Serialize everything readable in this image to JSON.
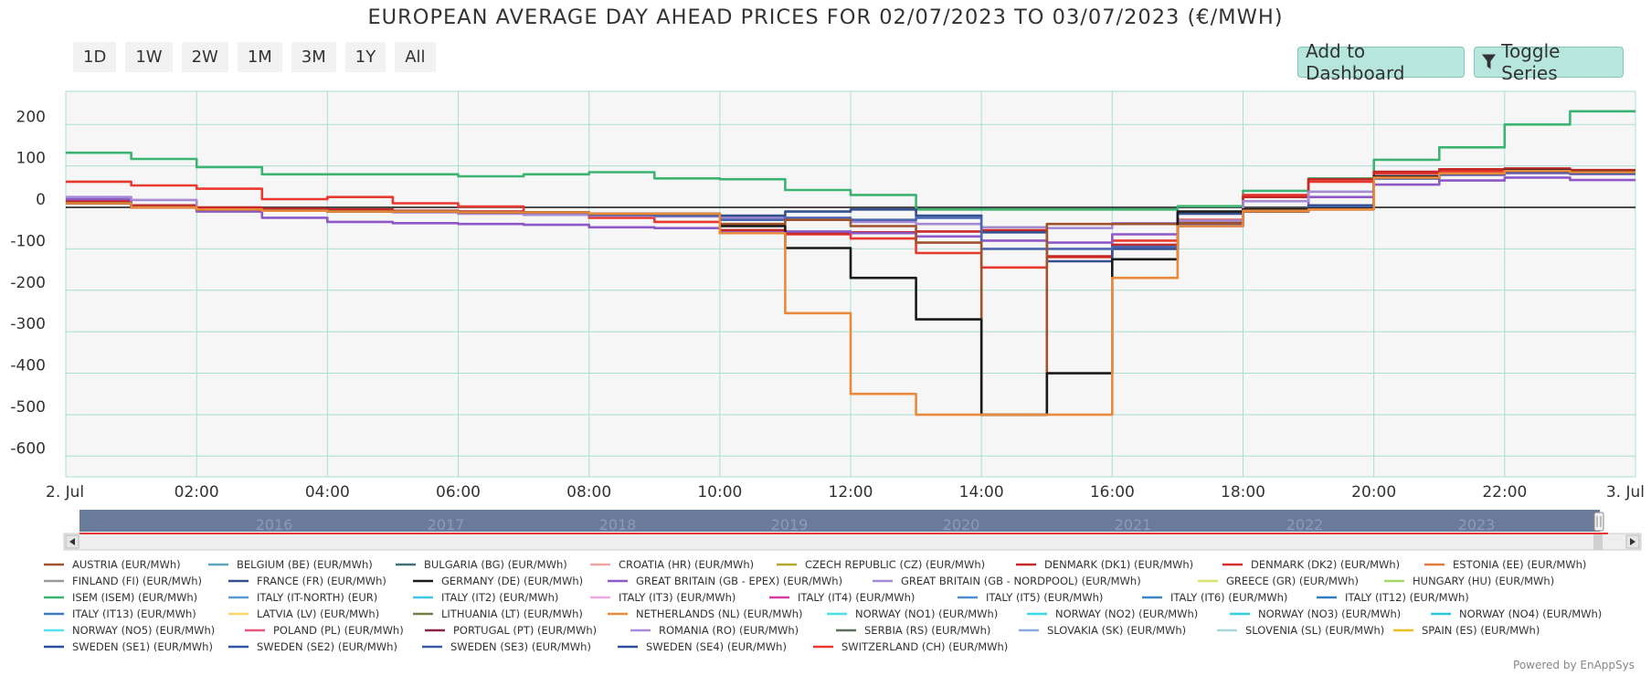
{
  "title": "EUROPEAN AVERAGE DAY AHEAD PRICES FOR 02/07/2023 TO 03/07/2023 (€/MWH)",
  "range_buttons": [
    "1D",
    "1W",
    "2W",
    "1M",
    "3M",
    "1Y",
    "All"
  ],
  "actions": {
    "add_to_dashboard": "Add to Dashboard",
    "toggle_series": "Toggle Series"
  },
  "footer": "Powered by EnAppSys",
  "colors": {
    "grid": "#aaddd3",
    "plot_bg": "#f6f6f6",
    "navigator": "#6a7a9b",
    "accent_button": "#b7e6dd"
  },
  "chart_data": {
    "type": "line",
    "step": true,
    "ylim": [
      -650,
      280
    ],
    "y_ticks": [
      200,
      100,
      0,
      -100,
      -200,
      -300,
      -400,
      -500,
      -600
    ],
    "x_range_hours": [
      0,
      24
    ],
    "x_ticks": [
      {
        "h": 0,
        "label": "2. Jul"
      },
      {
        "h": 2,
        "label": "02:00"
      },
      {
        "h": 4,
        "label": "04:00"
      },
      {
        "h": 6,
        "label": "06:00"
      },
      {
        "h": 8,
        "label": "08:00"
      },
      {
        "h": 10,
        "label": "10:00"
      },
      {
        "h": 12,
        "label": "12:00"
      },
      {
        "h": 14,
        "label": "14:00"
      },
      {
        "h": 16,
        "label": "16:00"
      },
      {
        "h": 18,
        "label": "18:00"
      },
      {
        "h": 20,
        "label": "20:00"
      },
      {
        "h": 22,
        "label": "22:00"
      },
      {
        "h": 24,
        "label": "3. Jul"
      }
    ],
    "navigator_years": [
      "2016",
      "2017",
      "2018",
      "2019",
      "2020",
      "2021",
      "2022",
      "2023"
    ],
    "series": [
      {
        "name": "ISEM (ISEM) (EUR/MWh)",
        "color": "#3cb371",
        "values": [
          132,
          132,
          117,
          117,
          97,
          97,
          80,
          80,
          80,
          80,
          80,
          80,
          75,
          75,
          80,
          80,
          85,
          85,
          70,
          70,
          68,
          68,
          42,
          42,
          30,
          30,
          -5,
          -5,
          -5,
          -5,
          -5,
          -5,
          -5,
          -5,
          3,
          3,
          40,
          40,
          70,
          70,
          115,
          115,
          145,
          145,
          200,
          200,
          232,
          232
        ]
      },
      {
        "name": "SWITZERLAND (CH) (EUR/MWh)",
        "color": "#e8392f",
        "values": [
          62,
          62,
          53,
          53,
          45,
          45,
          20,
          20,
          25,
          25,
          10,
          10,
          2,
          2,
          -15,
          -15,
          -25,
          -25,
          -35,
          -35,
          -55,
          -55,
          -65,
          -65,
          -75,
          -75,
          -110,
          -110,
          -145,
          -145,
          -120,
          -120,
          -80,
          -80,
          -30,
          -30,
          30,
          30,
          62,
          62,
          82,
          82,
          87,
          87,
          90,
          90,
          88,
          88
        ]
      },
      {
        "name": "DENMARK (DK1) (EUR/MWh)",
        "color": "#c62828",
        "values": [
          15,
          15,
          5,
          5,
          0,
          0,
          -3,
          -3,
          -5,
          -5,
          -8,
          -8,
          -10,
          -10,
          -12,
          -12,
          -15,
          -15,
          -20,
          -20,
          -55,
          -55,
          -62,
          -62,
          -60,
          -60,
          -58,
          -58,
          -55,
          -55,
          -118,
          -118,
          -90,
          -90,
          -35,
          -35,
          25,
          25,
          68,
          68,
          86,
          86,
          92,
          92,
          94,
          94,
          90,
          90
        ]
      },
      {
        "name": "GREAT BRITAIN (GB - EPEX) (EUR/MWh)",
        "color": "#8e58c7",
        "values": [
          20,
          20,
          0,
          0,
          -10,
          -10,
          -25,
          -25,
          -35,
          -35,
          -38,
          -38,
          -40,
          -40,
          -42,
          -42,
          -48,
          -48,
          -50,
          -50,
          -60,
          -60,
          -58,
          -58,
          -62,
          -62,
          -70,
          -70,
          -80,
          -80,
          -85,
          -85,
          -65,
          -65,
          -45,
          -45,
          -5,
          -5,
          25,
          25,
          55,
          55,
          65,
          65,
          72,
          72,
          66,
          66
        ]
      },
      {
        "name": "GREAT BRITAIN (GB - NORDPOOL) (EUR/MWh)",
        "color": "#a58ad4",
        "values": [
          25,
          25,
          18,
          18,
          -5,
          -5,
          -8,
          -8,
          -10,
          -10,
          -12,
          -12,
          -15,
          -15,
          -18,
          -18,
          -20,
          -20,
          -22,
          -22,
          -25,
          -25,
          -28,
          -28,
          -35,
          -35,
          -40,
          -40,
          -48,
          -48,
          -50,
          -50,
          -38,
          -38,
          -32,
          -32,
          15,
          15,
          38,
          38,
          70,
          70,
          78,
          78,
          82,
          82,
          80,
          80
        ]
      },
      {
        "name": "FRANCE (FR) (EUR/MWh)",
        "color": "#34508f",
        "values": [
          10,
          10,
          0,
          0,
          -5,
          -5,
          -8,
          -8,
          -10,
          -10,
          -10,
          -10,
          -12,
          -12,
          -12,
          -12,
          -15,
          -15,
          -15,
          -15,
          -20,
          -20,
          -10,
          -10,
          -5,
          -5,
          -20,
          -20,
          -60,
          -60,
          -130,
          -130,
          -100,
          -100,
          -15,
          -15,
          -5,
          -5,
          5,
          5,
          70,
          70,
          80,
          80,
          85,
          85,
          82,
          82
        ]
      },
      {
        "name": "SWEDEN (SE1) (EUR/MWh)",
        "color": "#4a67b0",
        "values": [
          10,
          10,
          0,
          0,
          -5,
          -5,
          -8,
          -8,
          -10,
          -10,
          -10,
          -10,
          -12,
          -12,
          -12,
          -12,
          -18,
          -18,
          -20,
          -20,
          -30,
          -30,
          -25,
          -25,
          -30,
          -30,
          -25,
          -25,
          -100,
          -100,
          -100,
          -100,
          -95,
          -95,
          -40,
          -40,
          -5,
          -5,
          0,
          0,
          75,
          75,
          80,
          80,
          88,
          88,
          84,
          84
        ]
      },
      {
        "name": "AUSTRIA (EUR/MWh)",
        "color": "#a0522d",
        "values": [
          10,
          10,
          0,
          0,
          -5,
          -5,
          -8,
          -8,
          -10,
          -10,
          -10,
          -10,
          -12,
          -12,
          -12,
          -12,
          -15,
          -15,
          -15,
          -15,
          -40,
          -40,
          -30,
          -30,
          -45,
          -45,
          -85,
          -85,
          -500,
          -500,
          -40,
          -40,
          -40,
          -40,
          -38,
          -38,
          -10,
          -10,
          -5,
          -5,
          72,
          72,
          82,
          82,
          90,
          90,
          86,
          86
        ]
      },
      {
        "name": "GERMANY (DE) (EUR/MWh)",
        "color": "#1a1a1a",
        "values": [
          10,
          10,
          0,
          0,
          -5,
          -5,
          -8,
          -8,
          -10,
          -10,
          -10,
          -10,
          -12,
          -12,
          -12,
          -12,
          -15,
          -15,
          -15,
          -15,
          -45,
          -45,
          -98,
          -98,
          -170,
          -170,
          -270,
          -270,
          -500,
          -500,
          -400,
          -400,
          -125,
          -125,
          -10,
          -10,
          -5,
          -5,
          -3,
          -3,
          75,
          75,
          82,
          82,
          90,
          90,
          86,
          86
        ]
      },
      {
        "name": "NETHERLANDS (NL) (EUR/MWh)",
        "color": "#e8893c",
        "values": [
          10,
          10,
          0,
          0,
          -5,
          -5,
          -8,
          -8,
          -10,
          -10,
          -10,
          -10,
          -12,
          -12,
          -12,
          -12,
          -15,
          -15,
          -15,
          -15,
          -62,
          -62,
          -255,
          -255,
          -450,
          -450,
          -500,
          -500,
          -500,
          -500,
          -500,
          -500,
          -170,
          -170,
          -45,
          -45,
          -8,
          -8,
          -5,
          -5,
          72,
          72,
          82,
          82,
          88,
          88,
          85,
          85
        ]
      }
    ]
  },
  "legend": [
    "AUSTRIA (EUR/MWh)",
    "BELGIUM (BE) (EUR/MWh)",
    "BULGARIA (BG) (EUR/MWh)",
    "CROATIA (HR) (EUR/MWh)",
    "CZECH REPUBLIC (CZ) (EUR/MWh)",
    "DENMARK (DK1) (EUR/MWh)",
    "DENMARK (DK2) (EUR/MWh)",
    "ESTONIA (EE) (EUR/MWh)",
    "FINLAND (FI) (EUR/MWh)",
    "FRANCE (FR) (EUR/MWh)",
    "GERMANY (DE) (EUR/MWh)",
    "GREAT BRITAIN (GB - EPEX) (EUR/MWh)",
    "GREAT BRITAIN (GB - NORDPOOL) (EUR/MWh)",
    "GREECE (GR) (EUR/MWh)",
    "HUNGARY (HU) (EUR/MWh)",
    "ISEM (ISEM) (EUR/MWh)",
    "ITALY (IT-NORTH) (EUR)",
    "ITALY (IT2) (EUR/MWh)",
    "ITALY (IT3) (EUR/MWh)",
    "ITALY (IT4) (EUR/MWh)",
    "ITALY (IT5) (EUR/MWh)",
    "ITALY (IT6) (EUR/MWh)",
    "ITALY (IT12) (EUR/MWh)",
    "ITALY (IT13) (EUR/MWh)",
    "LATVIA (LV) (EUR/MWh)",
    "LITHUANIA (LT) (EUR/MWh)",
    "NETHERLANDS (NL) (EUR/MWh)",
    "NORWAY (NO1) (EUR/MWh)",
    "NORWAY (NO2) (EUR/MWh)",
    "NORWAY (NO3) (EUR/MWh)",
    "NORWAY (NO4) (EUR/MWh)",
    "NORWAY (NO5) (EUR/MWh)",
    "POLAND (PL) (EUR/MWh)",
    "PORTUGAL (PT) (EUR/MWh)",
    "ROMANIA (RO) (EUR/MWh)",
    "SERBIA (RS) (EUR/MWh)",
    "SLOVAKIA (SK) (EUR/MWh)",
    "SLOVENIA (SL) (EUR/MWh)",
    "SPAIN (ES) (EUR/MWh)",
    "SWEDEN (SE1) (EUR/MWh)",
    "SWEDEN (SE2) (EUR/MWh)",
    "SWEDEN (SE3) (EUR/MWh)",
    "SWEDEN (SE4) (EUR/MWh)",
    "SWITZERLAND (CH) (EUR/MWh)"
  ],
  "legend_colors": [
    "#a0522d",
    "#5aa6bd",
    "#3f6f78",
    "#f4a3a3",
    "#b5a828",
    "#c62828",
    "#d32f2f",
    "#e07b3c",
    "#999999",
    "#34508f",
    "#1a1a1a",
    "#8e58c7",
    "#a58ad4",
    "#d8e56b",
    "#a6d86b",
    "#3cb371",
    "#5b9bd5",
    "#42c3e8",
    "#f7a6e4",
    "#d63aa5",
    "#4c8fd0",
    "#3d86c6",
    "#2f7cc0",
    "#3a78c2",
    "#f5d76e",
    "#7a7a4a",
    "#e8893c",
    "#4ee0e8",
    "#3ad8e6",
    "#2fd0e0",
    "#2ac8da",
    "#55e3ee",
    "#e85a7a",
    "#8a2446",
    "#a98ae0",
    "#5e6e5e",
    "#8aaae0",
    "#a8d8dc",
    "#f0c020",
    "#2a4fa0",
    "#3055a5",
    "#3a5aa8",
    "#2f4f9e",
    "#e8392f"
  ]
}
